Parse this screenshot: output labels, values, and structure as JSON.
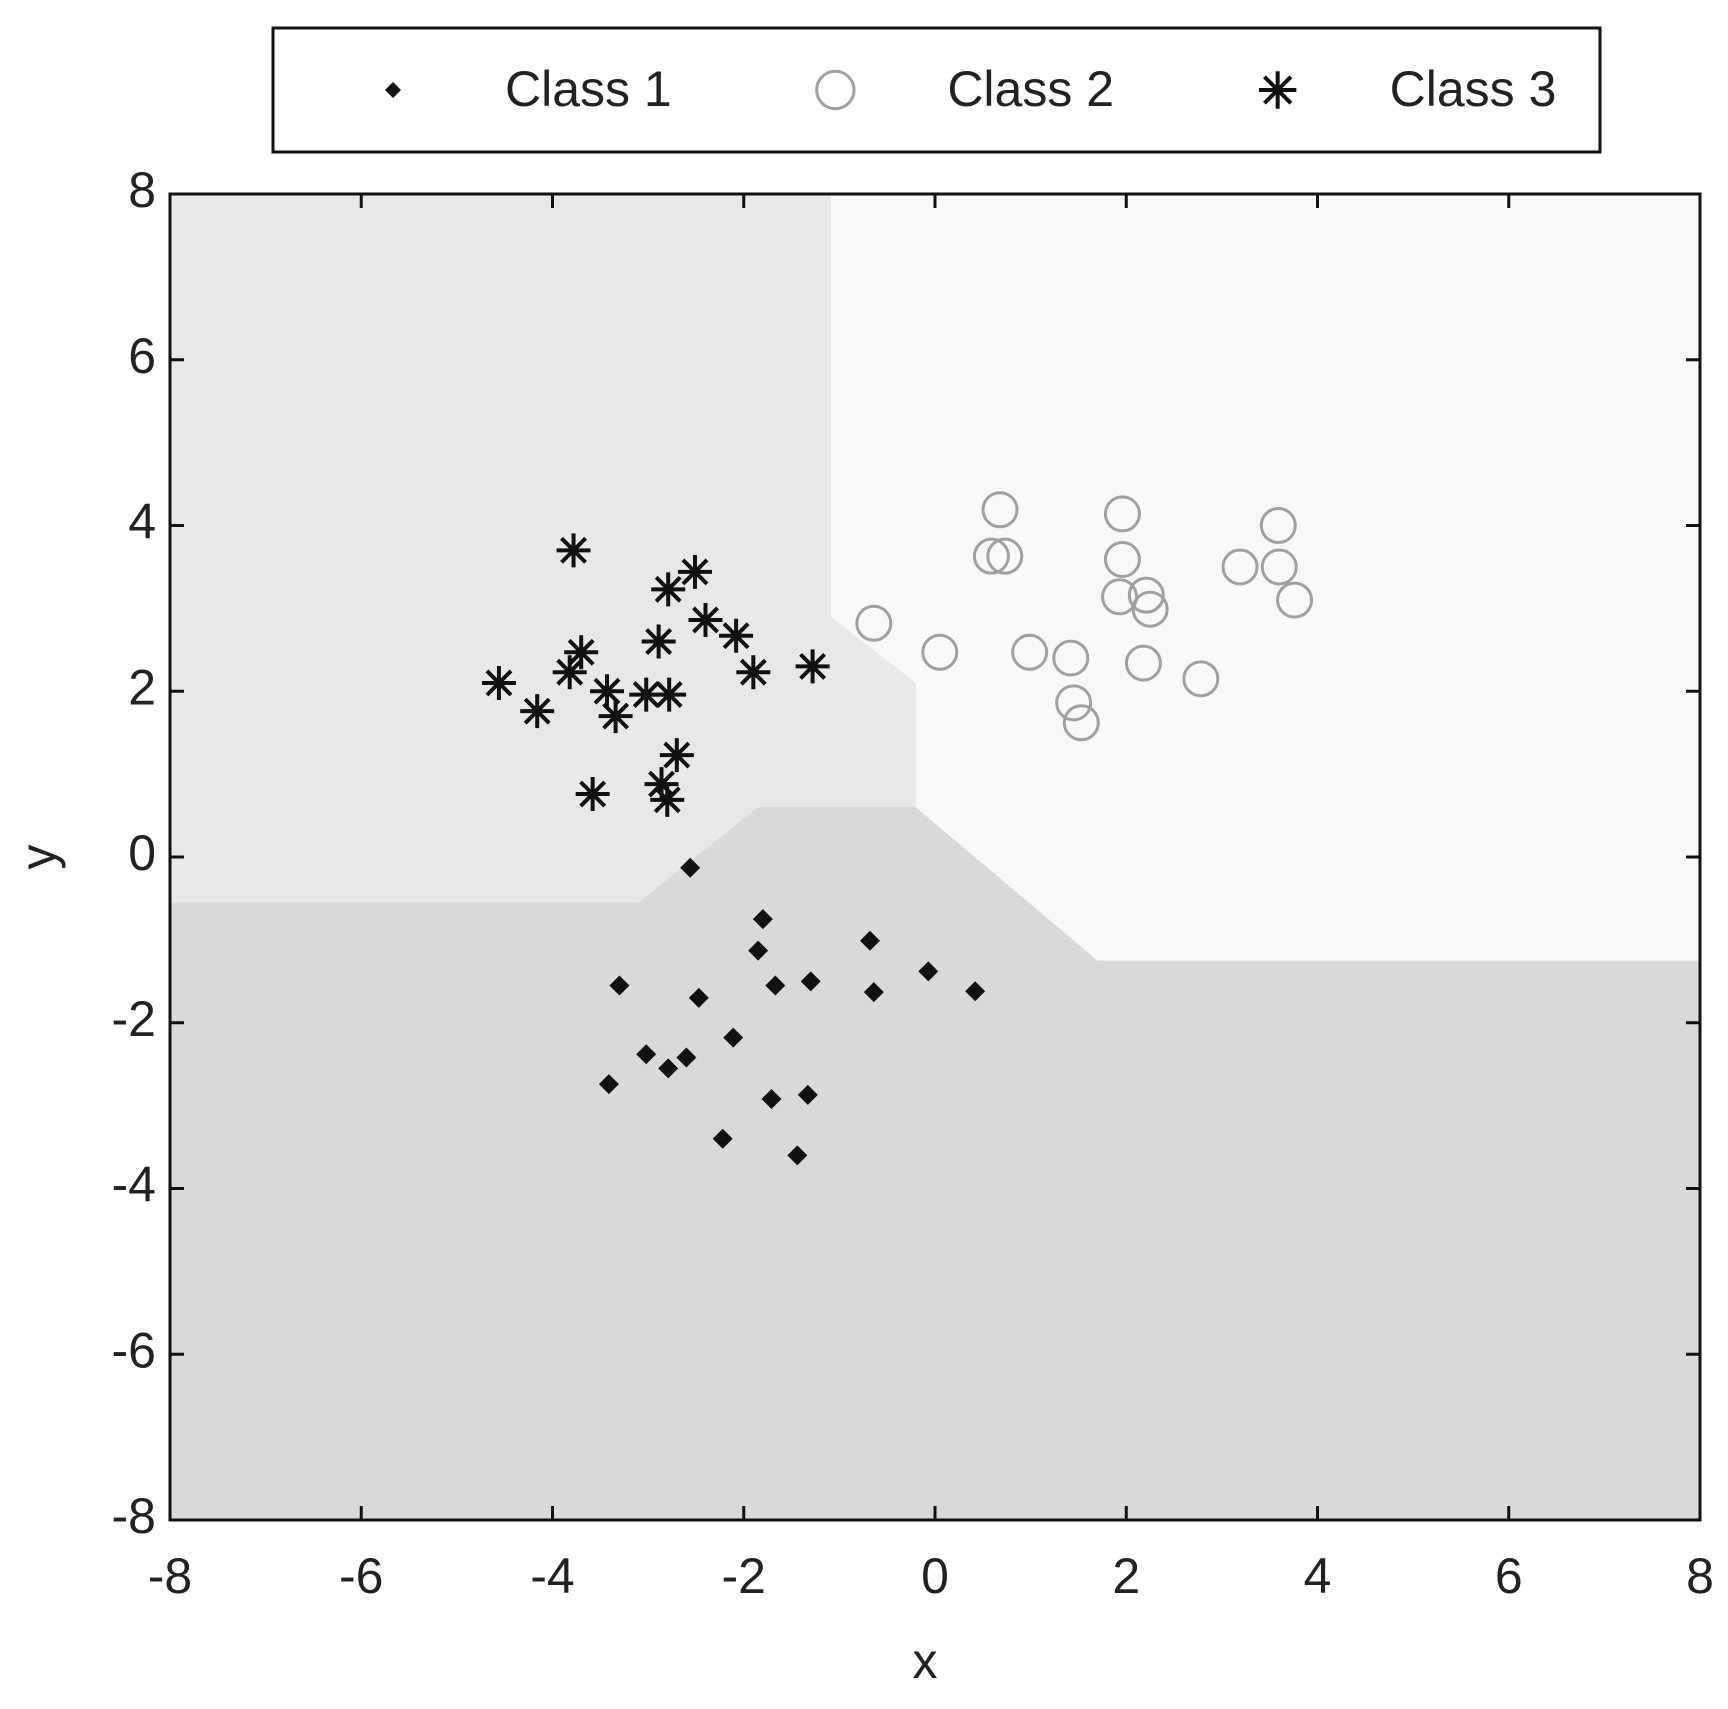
{
  "chart_data": {
    "type": "scatter",
    "x_label": "x",
    "y_label": "y",
    "xlim": [
      -8,
      8
    ],
    "ylim": [
      -8,
      8
    ],
    "xticks": [
      -8,
      -6,
      -4,
      -2,
      0,
      2,
      4,
      6,
      8
    ],
    "yticks": [
      -8,
      -6,
      -4,
      -2,
      0,
      2,
      4,
      6,
      8
    ],
    "legend": "top",
    "background": "#e8e8e8",
    "regions": [
      {
        "color": "#d9d9d9",
        "x": [
          -8,
          -8,
          -3.1,
          -1.85,
          -0.2,
          1.7,
          8,
          8
        ],
        "y": [
          -8,
          -0.55,
          -0.55,
          0.6,
          0.6,
          -1.25,
          -1.25,
          -8
        ]
      },
      {
        "color": "#f8f8f8",
        "x": [
          -1.09,
          -1.09,
          -0.2,
          -0.2,
          1.7,
          8,
          8
        ],
        "y": [
          8,
          2.9,
          2.1,
          0.6,
          -1.25,
          -1.25,
          8
        ]
      }
    ],
    "series": [
      {
        "name": "Class 1",
        "marker": "diamond",
        "color": "#111111",
        "x": [
          -2.56,
          -1.8,
          -1.85,
          -0.68,
          -0.07,
          0.42,
          -0.64,
          -1.3,
          -1.67,
          -3.3,
          -2.47,
          -2.11,
          -3.02,
          -2.79,
          -2.6,
          -3.41,
          -1.71,
          -1.33,
          -2.22,
          -1.44
        ],
        "values": [
          -0.13,
          -0.75,
          -1.13,
          -1.01,
          -1.38,
          -1.62,
          -1.63,
          -1.5,
          -1.55,
          -1.55,
          -1.7,
          -2.18,
          -2.38,
          -2.55,
          -2.42,
          -2.74,
          -2.92,
          -2.87,
          -3.4,
          -3.6
        ]
      },
      {
        "name": "Class 2",
        "marker": "circle",
        "color": "#a0a0a0",
        "x": [
          0.68,
          1.96,
          3.59,
          0.59,
          0.73,
          1.96,
          3.19,
          3.6,
          2.21,
          1.93,
          2.25,
          3.76,
          -0.64,
          0.05,
          0.99,
          1.42,
          2.18,
          2.78,
          1.45,
          1.53
        ],
        "values": [
          4.19,
          4.14,
          4.0,
          3.63,
          3.63,
          3.59,
          3.5,
          3.5,
          3.16,
          3.14,
          2.99,
          3.1,
          2.82,
          2.47,
          2.47,
          2.4,
          2.34,
          2.15,
          1.86,
          1.62
        ]
      },
      {
        "name": "Class 3",
        "marker": "star",
        "color": "#111111",
        "x": [
          -3.78,
          -2.51,
          -2.79,
          -2.4,
          -2.89,
          -2.08,
          -3.7,
          -1.9,
          -1.28,
          -3.82,
          -4.56,
          -4.16,
          -3.43,
          -3.02,
          -2.78,
          -3.34,
          -2.7,
          -2.86,
          -2.8,
          -3.58
        ],
        "values": [
          3.7,
          3.44,
          3.23,
          2.86,
          2.6,
          2.67,
          2.47,
          2.23,
          2.3,
          2.23,
          2.1,
          1.76,
          2.0,
          1.96,
          1.96,
          1.7,
          1.23,
          0.88,
          0.69,
          0.76
        ]
      }
    ]
  }
}
